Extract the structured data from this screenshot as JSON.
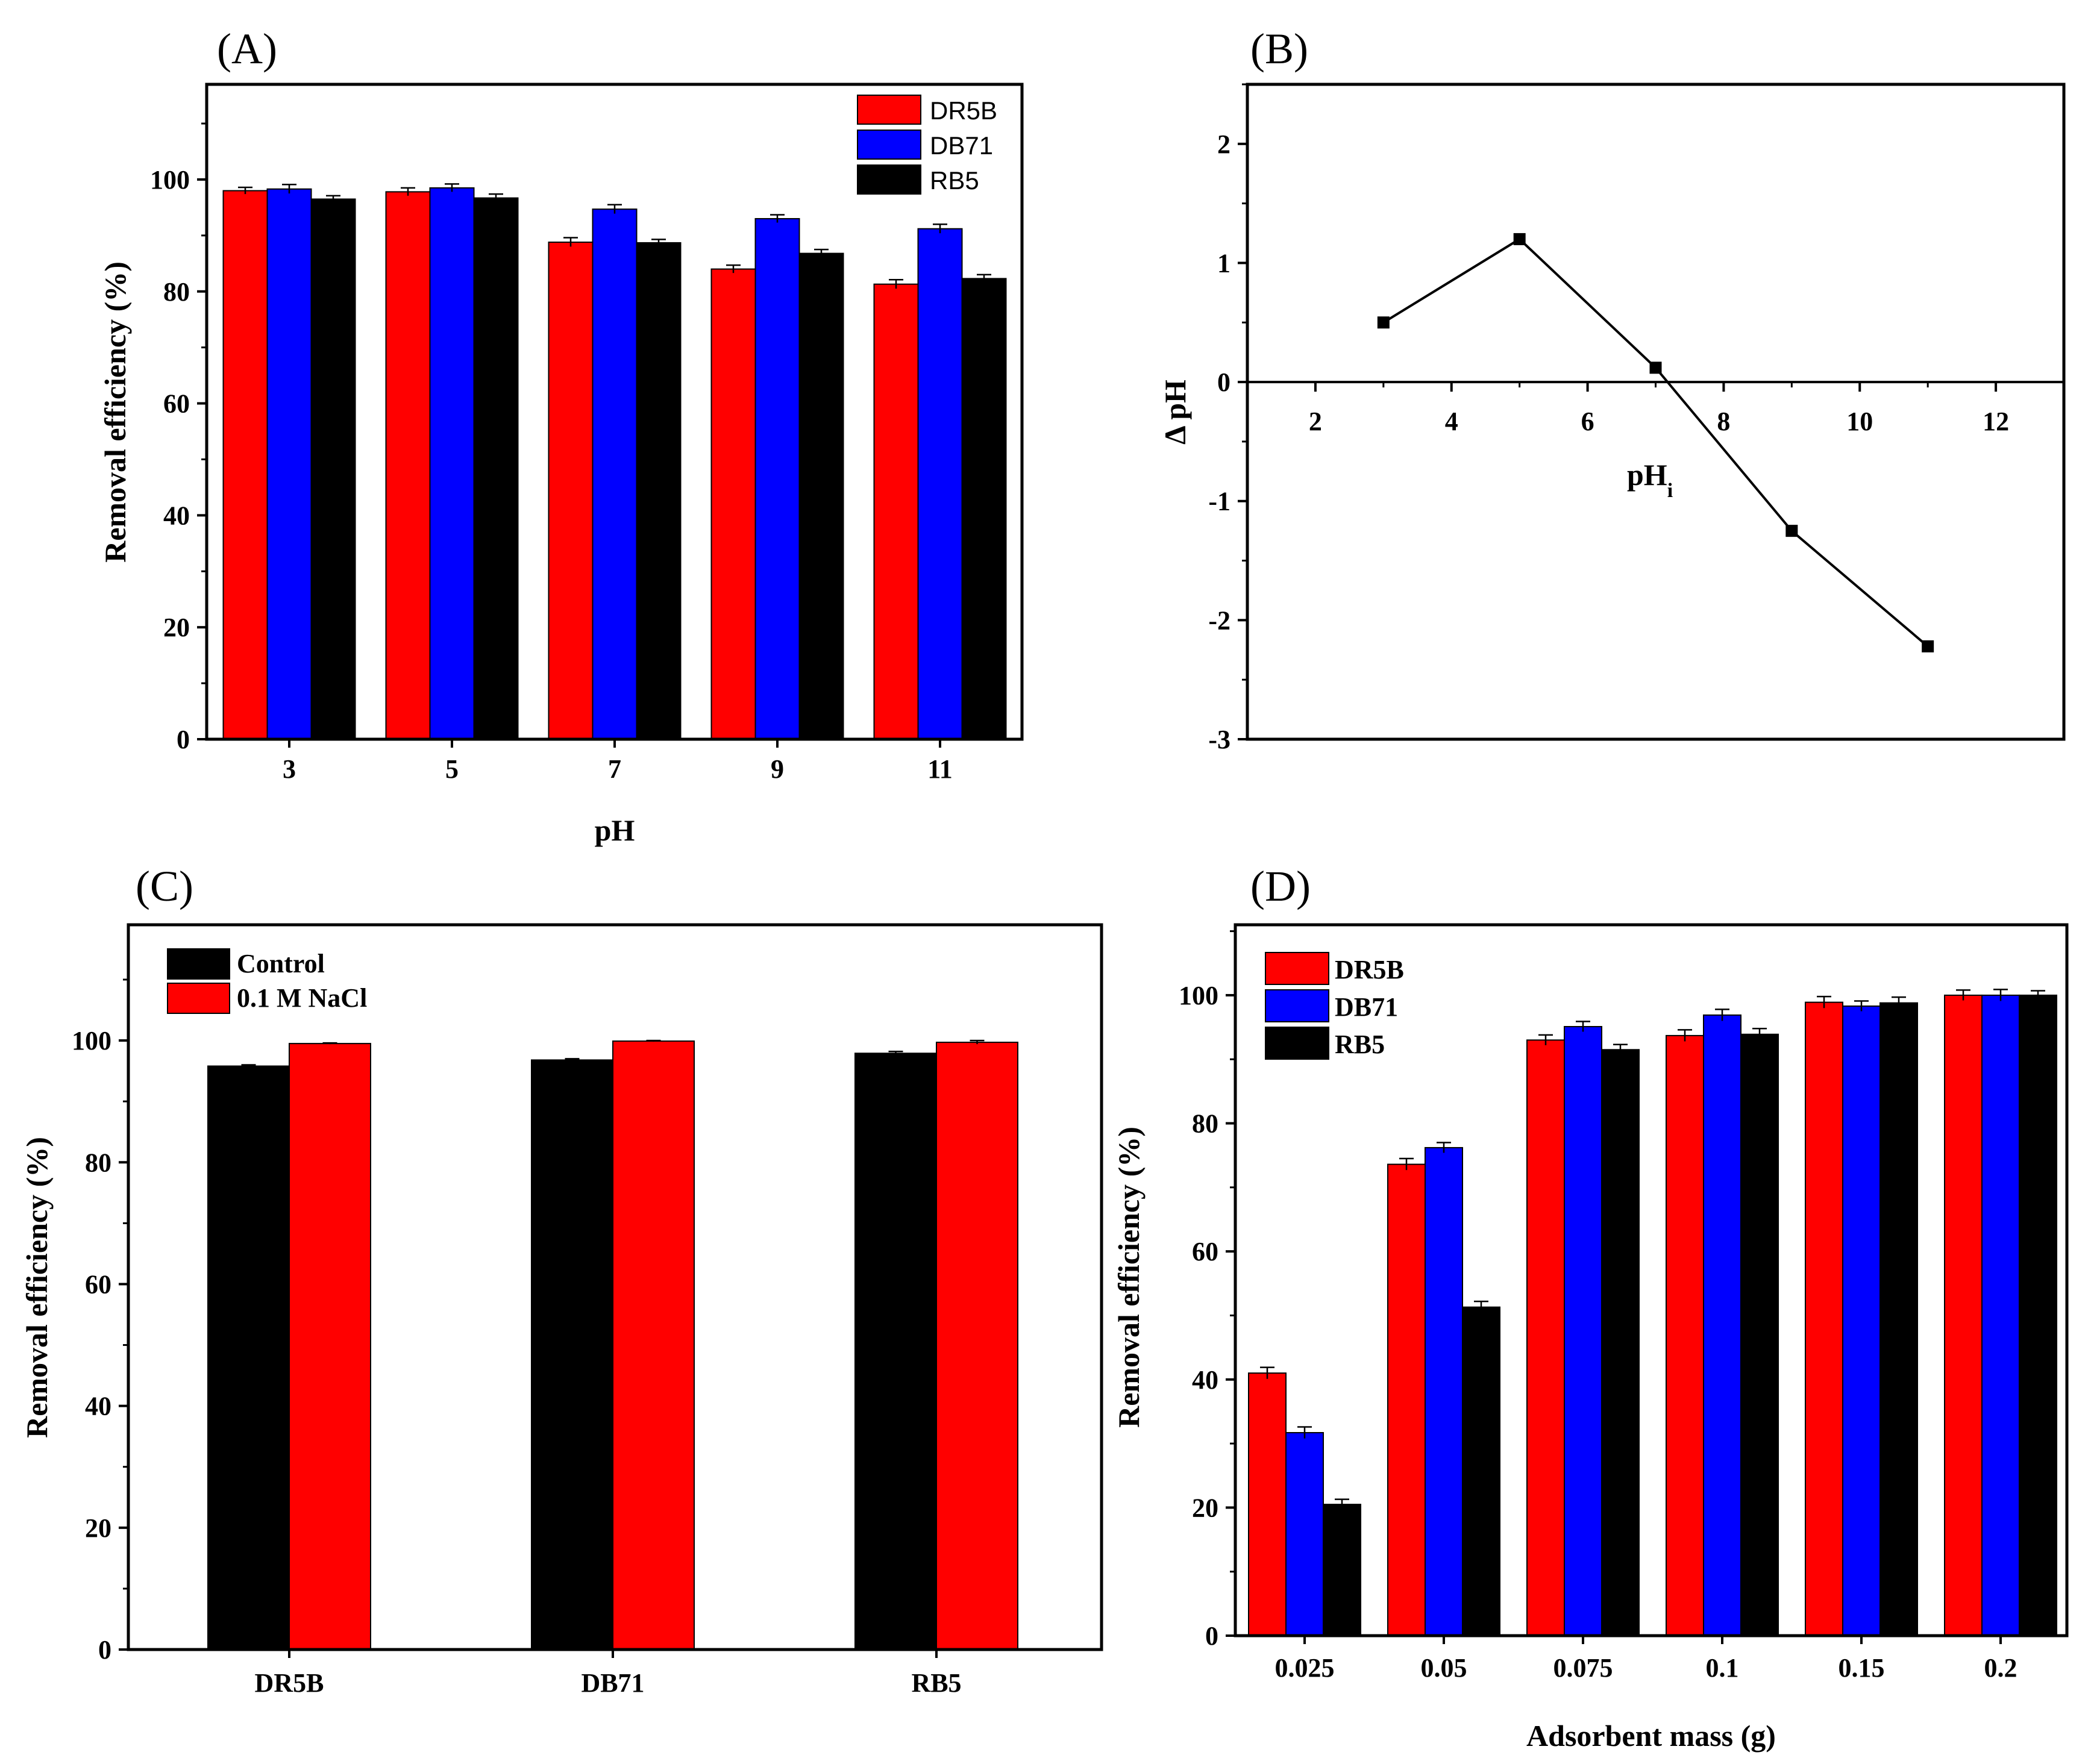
{
  "colors": {
    "red": "#ff0000",
    "blue": "#0000ff",
    "black": "#000000"
  },
  "chart_data": [
    {
      "panel": "(A)",
      "type": "bar",
      "categories": [
        "3",
        "5",
        "7",
        "9",
        "11"
      ],
      "series": [
        {
          "name": "DR5B",
          "color": "#ff0000",
          "values": [
            98,
            97.8,
            88.8,
            84,
            81.3
          ],
          "errors": [
            0.6,
            0.7,
            0.8,
            0.7,
            0.8
          ]
        },
        {
          "name": "DB71",
          "color": "#0000ff",
          "values": [
            98.3,
            98.5,
            94.7,
            93,
            91.2
          ],
          "errors": [
            0.8,
            0.7,
            0.8,
            0.7,
            0.8
          ]
        },
        {
          "name": "RB5",
          "color": "#000000",
          "values": [
            96.5,
            96.7,
            88.7,
            86.8,
            82.3
          ],
          "errors": [
            0.6,
            0.7,
            0.6,
            0.7,
            0.7
          ]
        }
      ],
      "xlabel": "pH",
      "ylabel": "Removal efficiency (%)",
      "ylim": [
        0,
        117
      ],
      "yticks": [
        "0",
        "20",
        "40",
        "60",
        "80",
        "100"
      ],
      "legend": "top-right"
    },
    {
      "panel": "(B)",
      "type": "line",
      "x": [
        3,
        5,
        7,
        9,
        11
      ],
      "y": [
        0.5,
        1.2,
        0.12,
        -1.25,
        -2.22
      ],
      "xlabel_main": "pH",
      "xlabel_sub": "i",
      "ylabel": "Δ pH",
      "xlim": [
        1,
        13
      ],
      "ylim": [
        -3,
        2.5
      ],
      "xticks": [
        "2",
        "4",
        "6",
        "8",
        "10",
        "12"
      ],
      "yticks": [
        "-3",
        "-2",
        "-1",
        "0",
        "1",
        "2"
      ]
    },
    {
      "panel": "(C)",
      "type": "bar",
      "categories": [
        "DR5B",
        "DB71",
        "RB5"
      ],
      "series": [
        {
          "name": "Control",
          "color": "#000000",
          "values": [
            95.8,
            96.8,
            97.9
          ],
          "errors": [
            0.2,
            0.2,
            0.3
          ]
        },
        {
          "name": "0.1 M NaCl",
          "color": "#ff0000",
          "values": [
            99.5,
            99.9,
            99.7
          ],
          "errors": [
            0.1,
            0.1,
            0.3
          ]
        }
      ],
      "xlabel": "",
      "ylabel": "Removal efficiency (%)",
      "ylim": [
        0,
        119
      ],
      "yticks": [
        "0",
        "20",
        "40",
        "60",
        "80",
        "100"
      ],
      "legend": "top-left"
    },
    {
      "panel": "(D)",
      "type": "bar",
      "categories": [
        "0.025",
        "0.05",
        "0.075",
        "0.1",
        "0.15",
        "0.2"
      ],
      "series": [
        {
          "name": "DR5B",
          "color": "#ff0000",
          "values": [
            41,
            73.6,
            93,
            93.7,
            98.9,
            100
          ],
          "errors": [
            0.9,
            0.9,
            0.8,
            0.9,
            0.9,
            0.8
          ]
        },
        {
          "name": "DB71",
          "color": "#0000ff",
          "values": [
            31.7,
            76.2,
            95.1,
            96.9,
            98.3,
            100
          ],
          "errors": [
            0.9,
            0.8,
            0.8,
            0.9,
            0.8,
            0.9
          ]
        },
        {
          "name": "RB5",
          "color": "#000000",
          "values": [
            20.5,
            51.3,
            91.5,
            93.9,
            98.8,
            100
          ],
          "errors": [
            0.8,
            0.9,
            0.8,
            0.9,
            0.9,
            0.7
          ]
        }
      ],
      "xlabel": "Adsorbent mass (g)",
      "ylabel": "Removal efficiency (%)",
      "ylim": [
        0,
        111
      ],
      "yticks": [
        "0",
        "20",
        "40",
        "60",
        "80",
        "100"
      ],
      "legend": "top-left"
    }
  ]
}
